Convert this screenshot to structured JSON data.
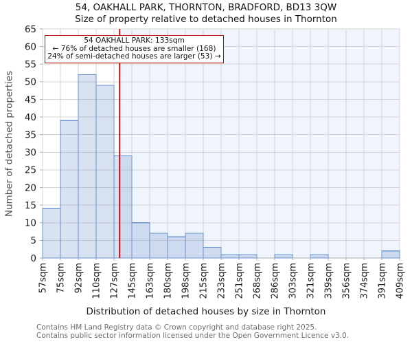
{
  "chart_data": {
    "type": "bar",
    "title": "54, OAKHALL PARK, THORNTON, BRADFORD, BD13 3QW",
    "subtitle": "Size of property relative to detached houses in Thornton",
    "xlabel": "Distribution of detached houses by size in Thornton",
    "ylabel": "Number of detached properties",
    "categories": [
      "57sqm",
      "75sqm",
      "92sqm",
      "110sqm",
      "127sqm",
      "145sqm",
      "163sqm",
      "180sqm",
      "198sqm",
      "215sqm",
      "233sqm",
      "251sqm",
      "268sqm",
      "286sqm",
      "303sqm",
      "321sqm",
      "339sqm",
      "356sqm",
      "374sqm",
      "391sqm",
      "409sqm"
    ],
    "bin_edges_sqm": [
      57,
      75,
      92,
      110,
      127,
      145,
      163,
      180,
      198,
      215,
      233,
      251,
      268,
      286,
      303,
      321,
      339,
      356,
      374,
      391,
      409
    ],
    "values": [
      14,
      39,
      52,
      49,
      29,
      10,
      7,
      6,
      7,
      3,
      1,
      1,
      0,
      1,
      0,
      1,
      0,
      0,
      0,
      2
    ],
    "ylim": [
      0,
      65
    ],
    "ytick_step": 5,
    "grid": true,
    "legend": "none",
    "marker": {
      "value_sqm": 133,
      "color": "#c00000"
    },
    "annotation": {
      "line1": "54 OAKHALL PARK: 133sqm",
      "line2": "← 76% of detached houses are smaller (168)",
      "line3": "24% of semi-detached houses are larger (53) →"
    },
    "colors": {
      "bar_fill": "rgba(120,152,205,0.28)",
      "bar_edge": "#6b93ce",
      "region_fill": "#f0f4fc",
      "grid": "#d4d4d4",
      "axis": "#a9a9a9",
      "tick_text": "#1c1c1c"
    }
  },
  "footer": {
    "line1": "Contains HM Land Registry data © Crown copyright and database right 2025.",
    "line2": "Contains public sector information licensed under the Open Government Licence v3.0."
  }
}
